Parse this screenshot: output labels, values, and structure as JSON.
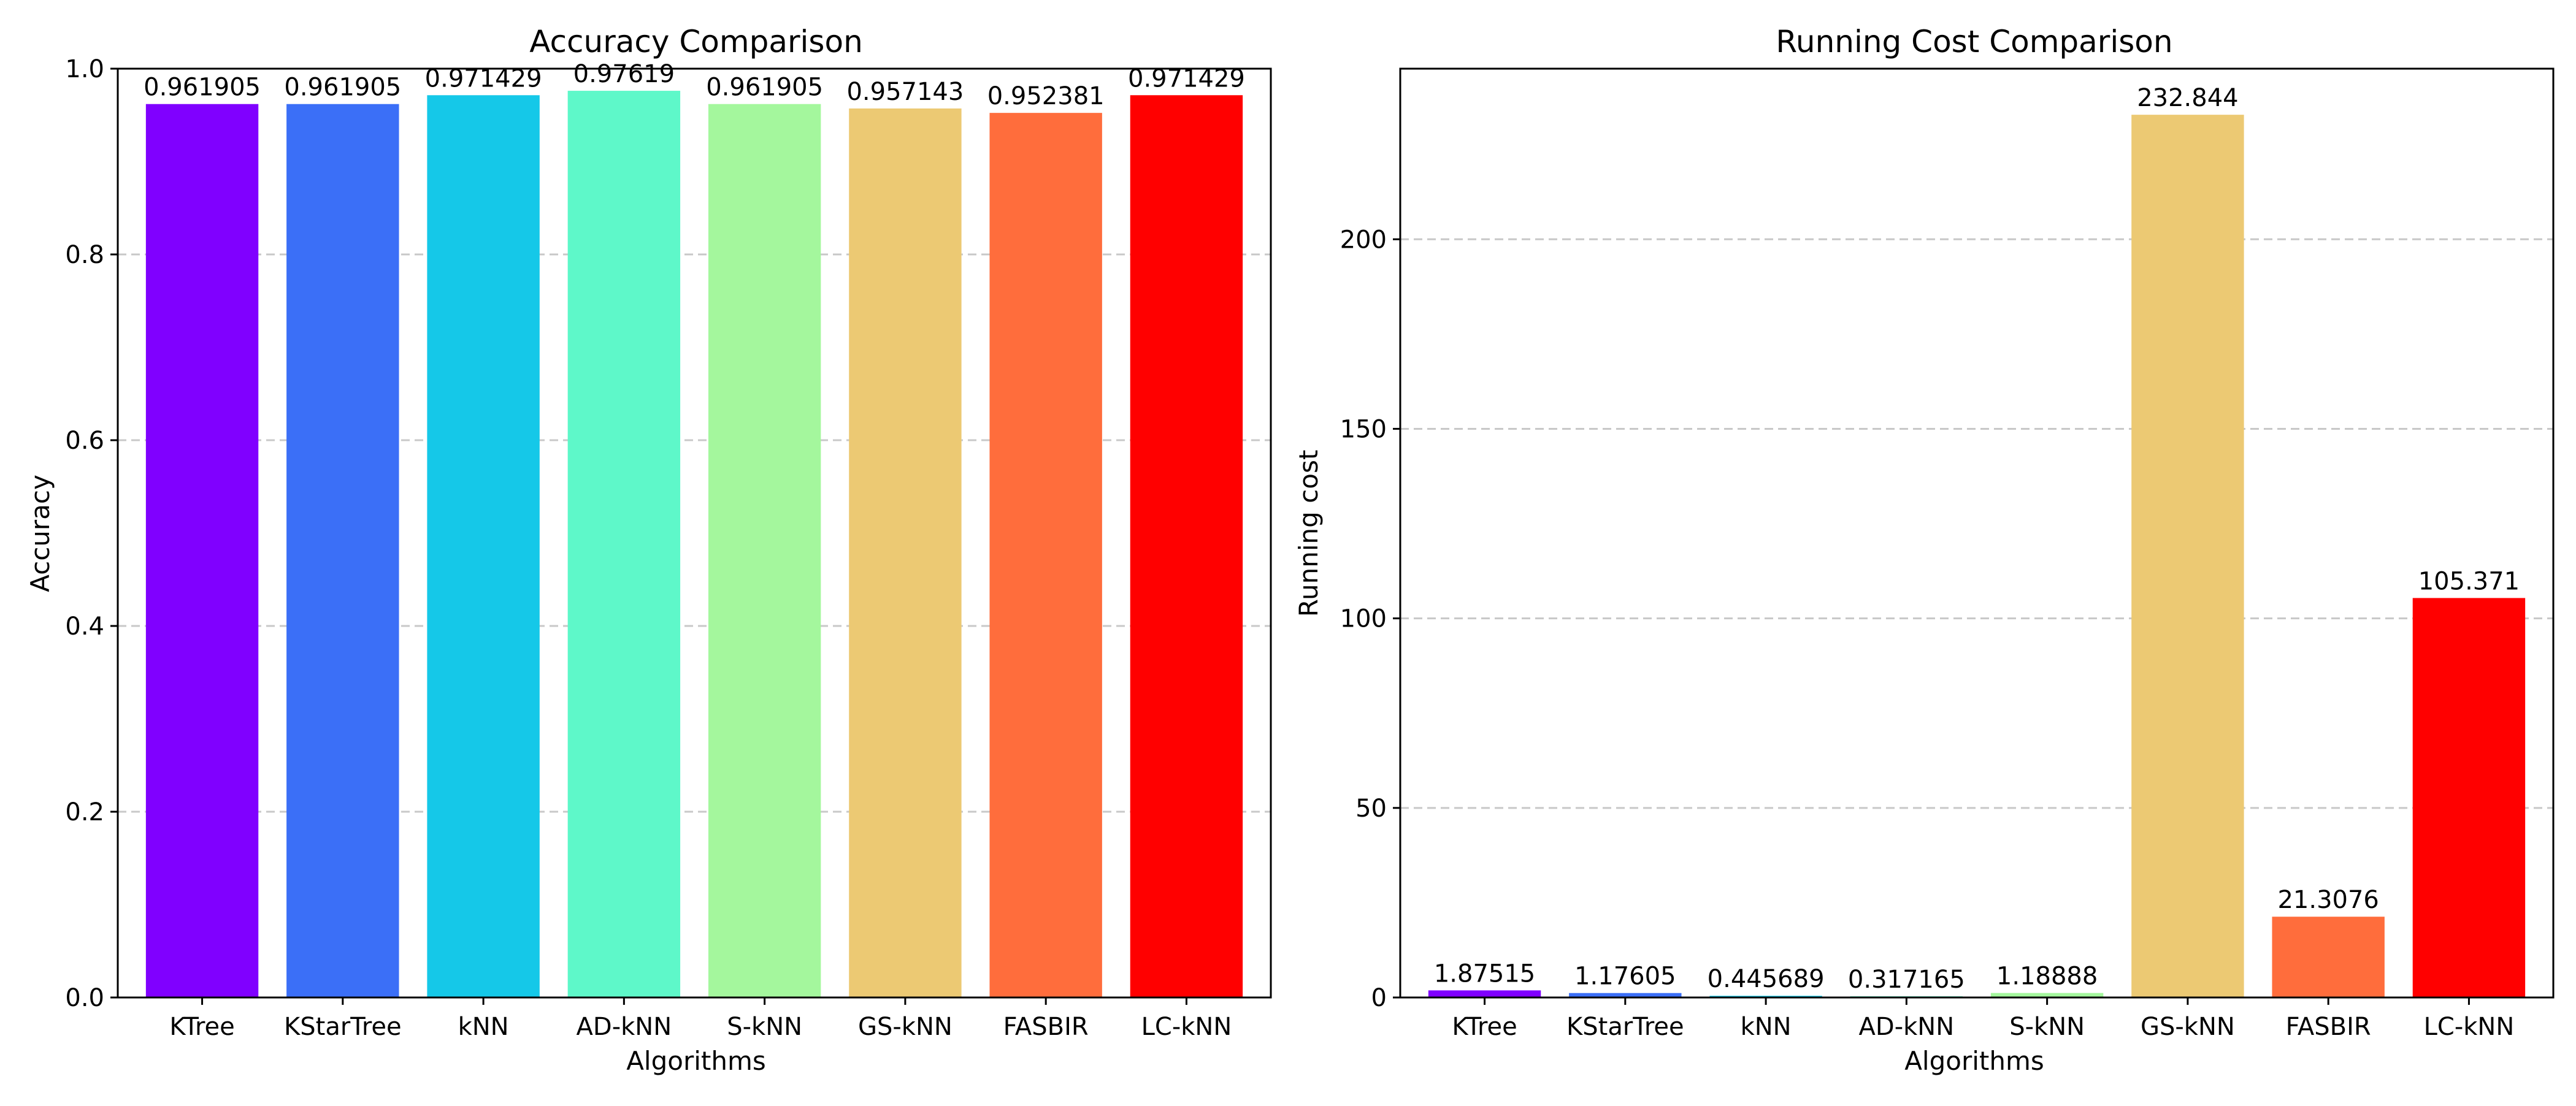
{
  "chart_data": [
    {
      "type": "bar",
      "title": "Accuracy Comparison",
      "xlabel": "Algorithms",
      "ylabel": "Accuracy",
      "categories": [
        "KTree",
        "KStarTree",
        "kNN",
        "AD-kNN",
        "S-kNN",
        "GS-kNN",
        "FASBIR",
        "LC-kNN"
      ],
      "values": [
        0.961905,
        0.961905,
        0.971429,
        0.97619,
        0.961905,
        0.957143,
        0.952381,
        0.971429
      ],
      "value_labels": [
        "0.961905",
        "0.961905",
        "0.971429",
        "0.97619",
        "0.961905",
        "0.957143",
        "0.952381",
        "0.971429"
      ],
      "ylim": [
        0,
        1.0
      ],
      "yticks": [
        0.0,
        0.2,
        0.4,
        0.6,
        0.8,
        1.0
      ],
      "ytick_labels": [
        "0.0",
        "0.2",
        "0.4",
        "0.6",
        "0.8",
        "1.0"
      ],
      "grid": "y-dashed",
      "colors": [
        "#8000ff",
        "#3b6ff7",
        "#15c8e8",
        "#5ef8c9",
        "#a4f79d",
        "#ecc973",
        "#ff6d3c",
        "#ff0000"
      ]
    },
    {
      "type": "bar",
      "title": "Running Cost Comparison",
      "xlabel": "Algorithms",
      "ylabel": "Running cost",
      "categories": [
        "KTree",
        "KStarTree",
        "kNN",
        "AD-kNN",
        "S-kNN",
        "GS-kNN",
        "FASBIR",
        "LC-kNN"
      ],
      "values": [
        1.87515,
        1.17605,
        0.445689,
        0.317165,
        1.18888,
        232.844,
        21.3076,
        105.371
      ],
      "value_labels": [
        "1.87515",
        "1.17605",
        "0.445689",
        "0.317165",
        "1.18888",
        "232.844",
        "21.3076",
        "105.371"
      ],
      "ylim": [
        0,
        245
      ],
      "yticks": [
        0,
        50,
        100,
        150,
        200
      ],
      "ytick_labels": [
        "0",
        "50",
        "100",
        "150",
        "200"
      ],
      "grid": "y-dashed",
      "colors": [
        "#8000ff",
        "#3b6ff7",
        "#15c8e8",
        "#5ef8c9",
        "#a4f79d",
        "#ecc973",
        "#ff6d3c",
        "#ff0000"
      ]
    }
  ]
}
